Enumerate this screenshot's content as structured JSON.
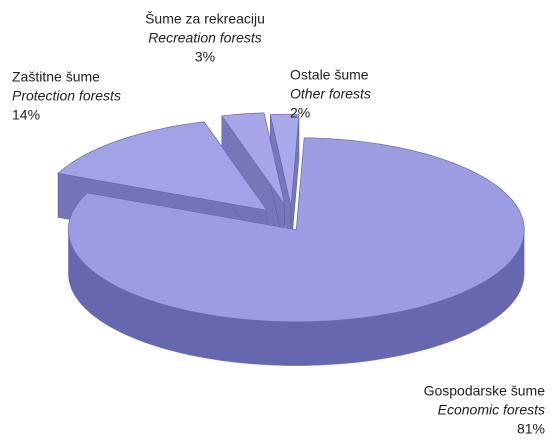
{
  "chart_data": {
    "type": "pie",
    "categories": [
      "Gospodarske šume",
      "Zaštitne šume",
      "Šume za rekreaciju",
      "Ostale šume"
    ],
    "categories_en": [
      "Economic forests",
      "Protection forests",
      "Recreation forests",
      "Other forests"
    ],
    "values": [
      81,
      14,
      3,
      2
    ],
    "value_labels": [
      "81%",
      "14%",
      "3%",
      "2%"
    ],
    "colors": [
      "#9c9ce2",
      "#a2a2e6",
      "#a6a6e8",
      "#a8a8ea"
    ]
  }
}
